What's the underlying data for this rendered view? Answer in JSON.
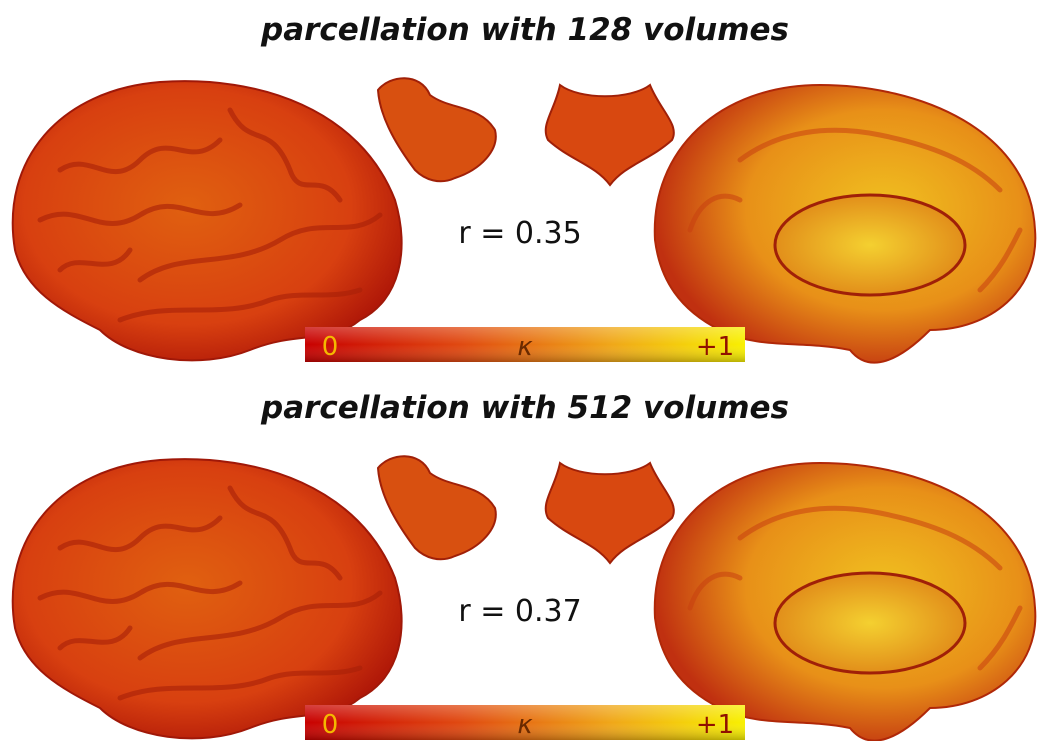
{
  "panels": [
    {
      "title": "parcellation with 128 volumes",
      "correlation": "r = 0.35",
      "colorbar": {
        "min_label": "0",
        "symbol": "κ",
        "max_label": "+1"
      }
    },
    {
      "title": "parcellation with 512 volumes",
      "correlation": "r = 0.37",
      "colorbar": {
        "min_label": "0",
        "symbol": "κ",
        "max_label": "+1"
      }
    }
  ]
}
